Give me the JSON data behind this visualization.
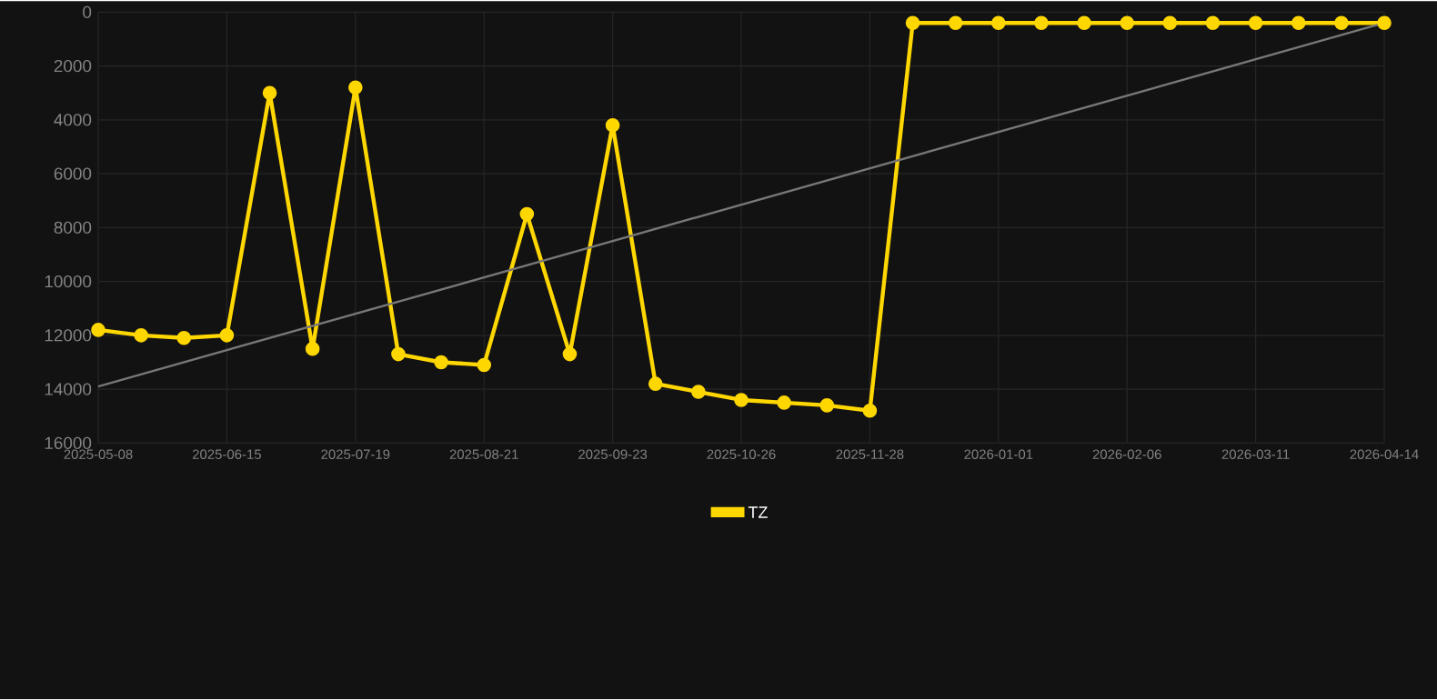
{
  "chart_data": {
    "type": "line",
    "categories": [
      "2025-05-08",
      null,
      null,
      "2025-06-15",
      null,
      null,
      "2025-07-19",
      null,
      null,
      "2025-08-21",
      null,
      null,
      "2025-09-23",
      null,
      null,
      "2025-10-26",
      null,
      null,
      "2025-11-28",
      null,
      null,
      "2026-01-01",
      null,
      null,
      "2026-02-06",
      null,
      null,
      "2026-03-11",
      null,
      null,
      "2026-04-14"
    ],
    "series": [
      {
        "name": "TZ",
        "color": "#ffd700",
        "marker": "circle",
        "values": [
          11800,
          12000,
          12100,
          12000,
          3000,
          12500,
          2800,
          12700,
          13000,
          13100,
          7500,
          12700,
          4200,
          13800,
          14100,
          14400,
          14500,
          14600,
          14800,
          400,
          400,
          400,
          400,
          400,
          400,
          400,
          400,
          400,
          400,
          400,
          400
        ]
      },
      {
        "type": "line",
        "color": "#777777",
        "marker": "none",
        "values": [
          13900,
          null,
          null,
          null,
          null,
          null,
          null,
          null,
          null,
          null,
          null,
          null,
          null,
          null,
          null,
          null,
          null,
          null,
          null,
          null,
          null,
          null,
          null,
          null,
          null,
          null,
          null,
          null,
          null,
          null,
          400
        ]
      }
    ],
    "ylim": [
      16000,
      0
    ],
    "yticks": [
      0,
      2000,
      4000,
      6000,
      8000,
      10000,
      12000,
      14000,
      16000
    ],
    "grid": true,
    "legend": "bottom",
    "line_style": "solid"
  }
}
